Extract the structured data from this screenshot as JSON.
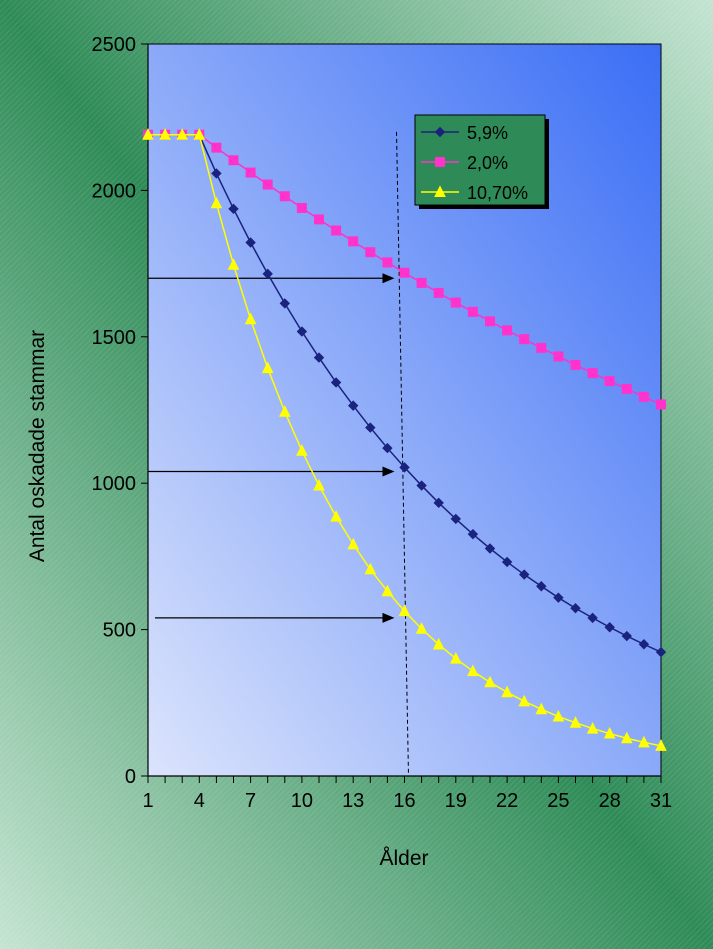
{
  "chart_data": {
    "type": "line",
    "title": "",
    "xlabel": "Ålder",
    "ylabel": "Antal oskadade stammar",
    "xlim": [
      1,
      31
    ],
    "ylim": [
      0,
      2500
    ],
    "yticks": [
      0,
      500,
      1000,
      1500,
      2000,
      2500
    ],
    "xticks": [
      1,
      4,
      7,
      10,
      13,
      16,
      19,
      22,
      25,
      28,
      31
    ],
    "grid": false,
    "legend_position": "top-right",
    "x": [
      1,
      2,
      3,
      4,
      5,
      6,
      7,
      8,
      9,
      10,
      11,
      12,
      13,
      14,
      15,
      16,
      17,
      18,
      19,
      20,
      21,
      22,
      23,
      24,
      25,
      26,
      27,
      28,
      29,
      30,
      31
    ],
    "series": [
      {
        "name": "5,9%",
        "color": "#1a237e",
        "marker": "diamond",
        "values": [
          2190,
          2190,
          2190,
          2190,
          2058,
          1937,
          1822,
          1715,
          1614,
          1518,
          1429,
          1344,
          1265,
          1190,
          1120,
          1054,
          992,
          933,
          878,
          826,
          777,
          731,
          688,
          648,
          609,
          573,
          540,
          508,
          478,
          450,
          423
        ]
      },
      {
        "name": "2,0%",
        "color": "#ff33cc",
        "marker": "square",
        "values": [
          2190,
          2190,
          2190,
          2190,
          2146,
          2103,
          2061,
          2020,
          1980,
          1940,
          1901,
          1863,
          1826,
          1789,
          1754,
          1719,
          1684,
          1650,
          1617,
          1585,
          1553,
          1522,
          1492,
          1462,
          1433,
          1404,
          1376,
          1349,
          1322,
          1295,
          1269
        ]
      },
      {
        "name": "10,70%",
        "color": "#ffff00",
        "marker": "triangle",
        "values": [
          2190,
          2190,
          2190,
          2190,
          1956,
          1746,
          1560,
          1393,
          1244,
          1111,
          992,
          886,
          791,
          706,
          631,
          563,
          503,
          449,
          401,
          358,
          320,
          286,
          255,
          228,
          203,
          182,
          162,
          145,
          129,
          115,
          103
        ]
      }
    ],
    "annotations": {
      "reference_age": 16,
      "arrows_at_values": [
        1700,
        1040,
        540
      ]
    }
  },
  "colors": {
    "frame_gradient": [
      "#c4e4d1",
      "#2e8b57"
    ],
    "plot_gradient_light": "#dbe4fc",
    "plot_gradient_dark": "#3a6ef5",
    "legend_background": "#2e8b57"
  }
}
